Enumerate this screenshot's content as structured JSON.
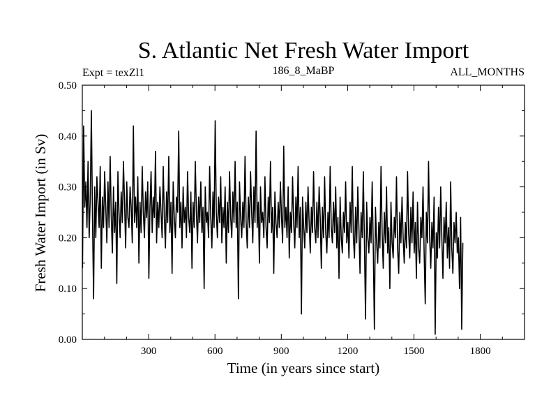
{
  "chart_data": {
    "type": "line",
    "title": "S. Atlantic Net Fresh Water Import",
    "experiment_label": "Expt = texZl1",
    "center_label": "186_8_MaBP",
    "right_label": "ALL_MONTHS",
    "xlabel": "Time (in years since start)",
    "ylabel": "Fresh Water Import (in Sv)",
    "xlim": [
      0,
      2000
    ],
    "ylim": [
      0.0,
      0.5
    ],
    "x_ticks": [
      300,
      600,
      900,
      1200,
      1500,
      1800
    ],
    "x_tick_labels": [
      "300",
      "600",
      "900",
      "1200",
      "1500",
      "1800"
    ],
    "y_ticks": [
      0.0,
      0.1,
      0.2,
      0.3,
      0.4,
      0.5
    ],
    "y_tick_labels": [
      "0.00",
      "0.10",
      "0.20",
      "0.30",
      "0.40",
      "0.50"
    ],
    "grid": false,
    "series": [
      {
        "name": "Fresh Water Import",
        "color": "#000000",
        "x_start": 1,
        "x_step": 5,
        "values": [
          0.14,
          0.42,
          0.26,
          0.31,
          0.22,
          0.35,
          0.2,
          0.28,
          0.45,
          0.24,
          0.08,
          0.3,
          0.2,
          0.32,
          0.27,
          0.22,
          0.34,
          0.14,
          0.28,
          0.22,
          0.33,
          0.26,
          0.19,
          0.31,
          0.22,
          0.36,
          0.24,
          0.17,
          0.3,
          0.21,
          0.27,
          0.11,
          0.33,
          0.25,
          0.2,
          0.29,
          0.23,
          0.35,
          0.27,
          0.18,
          0.31,
          0.24,
          0.22,
          0.3,
          0.26,
          0.19,
          0.42,
          0.23,
          0.28,
          0.22,
          0.32,
          0.15,
          0.27,
          0.21,
          0.34,
          0.25,
          0.2,
          0.29,
          0.24,
          0.31,
          0.12,
          0.26,
          0.33,
          0.21,
          0.28,
          0.24,
          0.37,
          0.19,
          0.27,
          0.22,
          0.3,
          0.25,
          0.2,
          0.34,
          0.24,
          0.18,
          0.29,
          0.23,
          0.36,
          0.21,
          0.27,
          0.13,
          0.31,
          0.24,
          0.2,
          0.28,
          0.25,
          0.41,
          0.22,
          0.27,
          0.18,
          0.3,
          0.23,
          0.26,
          0.2,
          0.33,
          0.24,
          0.21,
          0.29,
          0.14,
          0.27,
          0.22,
          0.35,
          0.25,
          0.19,
          0.28,
          0.23,
          0.31,
          0.21,
          0.26,
          0.1,
          0.3,
          0.23,
          0.25,
          0.2,
          0.34,
          0.24,
          0.18,
          0.29,
          0.22,
          0.43,
          0.25,
          0.2,
          0.28,
          0.23,
          0.32,
          0.19,
          0.26,
          0.22,
          0.3,
          0.15,
          0.27,
          0.21,
          0.33,
          0.24,
          0.2,
          0.29,
          0.23,
          0.35,
          0.22,
          0.27,
          0.08,
          0.31,
          0.24,
          0.2,
          0.27,
          0.22,
          0.36,
          0.23,
          0.18,
          0.28,
          0.22,
          0.33,
          0.25,
          0.19,
          0.3,
          0.23,
          0.41,
          0.22,
          0.27,
          0.15,
          0.3,
          0.23,
          0.25,
          0.2,
          0.32,
          0.22,
          0.18,
          0.28,
          0.23,
          0.35,
          0.21,
          0.26,
          0.13,
          0.29,
          0.23,
          0.2,
          0.27,
          0.22,
          0.31,
          0.24,
          0.19,
          0.38,
          0.22,
          0.26,
          0.2,
          0.3,
          0.16,
          0.25,
          0.21,
          0.32,
          0.23,
          0.18,
          0.28,
          0.22,
          0.34,
          0.2,
          0.26,
          0.05,
          0.28,
          0.22,
          0.18,
          0.27,
          0.21,
          0.3,
          0.23,
          0.17,
          0.26,
          0.21,
          0.33,
          0.22,
          0.19,
          0.27,
          0.2,
          0.3,
          0.24,
          0.14,
          0.26,
          0.2,
          0.32,
          0.21,
          0.17,
          0.25,
          0.2,
          0.34,
          0.22,
          0.19,
          0.27,
          0.21,
          0.3,
          0.18,
          0.24,
          0.12,
          0.28,
          0.2,
          0.17,
          0.25,
          0.21,
          0.31,
          0.19,
          0.23,
          0.16,
          0.27,
          0.21,
          0.34,
          0.2,
          0.16,
          0.26,
          0.19,
          0.3,
          0.22,
          0.13,
          0.25,
          0.2,
          0.33,
          0.19,
          0.04,
          0.27,
          0.2,
          0.17,
          0.24,
          0.19,
          0.31,
          0.18,
          0.02,
          0.26,
          0.19,
          0.15,
          0.23,
          0.18,
          0.34,
          0.21,
          0.14,
          0.25,
          0.19,
          0.3,
          0.17,
          0.22,
          0.1,
          0.27,
          0.19,
          0.16,
          0.24,
          0.2,
          0.32,
          0.18,
          0.13,
          0.25,
          0.19,
          0.28,
          0.2,
          0.15,
          0.23,
          0.18,
          0.33,
          0.21,
          0.16,
          0.26,
          0.19,
          0.29,
          0.17,
          0.23,
          0.12,
          0.27,
          0.18,
          0.15,
          0.24,
          0.2,
          0.3,
          0.17,
          0.07,
          0.25,
          0.19,
          0.35,
          0.2,
          0.14,
          0.23,
          0.18,
          0.28,
          0.01,
          0.21,
          0.16,
          0.26,
          0.18,
          0.3,
          0.2,
          0.12,
          0.24,
          0.19,
          0.27,
          0.16,
          0.22,
          0.14,
          0.31,
          0.18,
          0.13,
          0.23,
          0.19,
          0.25,
          0.17,
          0.2,
          0.1,
          0.24,
          0.02,
          0.19
        ]
      }
    ]
  }
}
